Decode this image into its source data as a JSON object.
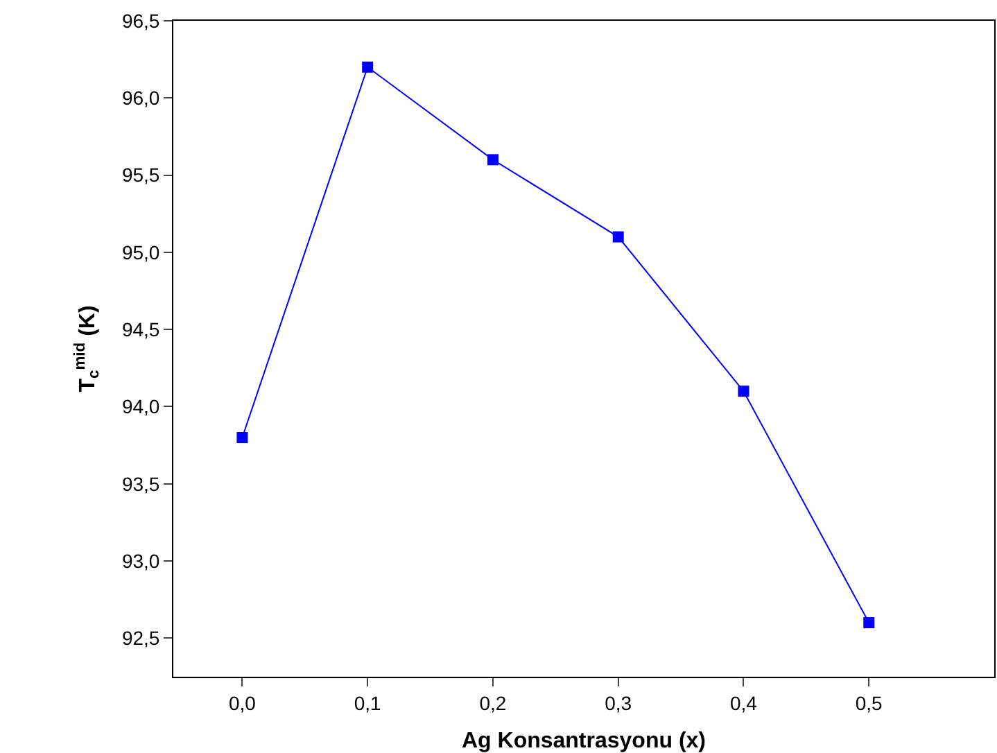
{
  "chart_data": {
    "type": "line",
    "xlabel": "Ag Konsantrasyonu (x)",
    "ylabel": "T$_{c}$$^{mid}$ (K)",
    "x": [
      0.0,
      0.1,
      0.2,
      0.3,
      0.4,
      0.5
    ],
    "series": [
      {
        "color": "#0000ff",
        "values": [
          93.8,
          96.2,
          95.6,
          95.1,
          94.1,
          92.6
        ]
      }
    ],
    "marker": "square",
    "line_style": "solid",
    "xlim": [
      -0.055,
      0.6
    ],
    "ylim": [
      92.25,
      96.5
    ],
    "xticks": [
      {
        "value": 0.0,
        "label": "0,0"
      },
      {
        "value": 0.1,
        "label": "0,1"
      },
      {
        "value": 0.2,
        "label": "0,2"
      },
      {
        "value": 0.3,
        "label": "0,3"
      },
      {
        "value": 0.4,
        "label": "0,4"
      },
      {
        "value": 0.5,
        "label": "0,5"
      }
    ],
    "yticks": [
      {
        "value": 92.5,
        "label": "92,5"
      },
      {
        "value": 93.0,
        "label": "93,0"
      },
      {
        "value": 93.5,
        "label": "93,5"
      },
      {
        "value": 94.0,
        "label": "94,0"
      },
      {
        "value": 94.5,
        "label": "94,5"
      },
      {
        "value": 95.0,
        "label": "95,0"
      },
      {
        "value": 95.5,
        "label": "95,5"
      },
      {
        "value": 96.0,
        "label": "96,0"
      },
      {
        "value": 96.5,
        "label": "96,5"
      }
    ]
  }
}
